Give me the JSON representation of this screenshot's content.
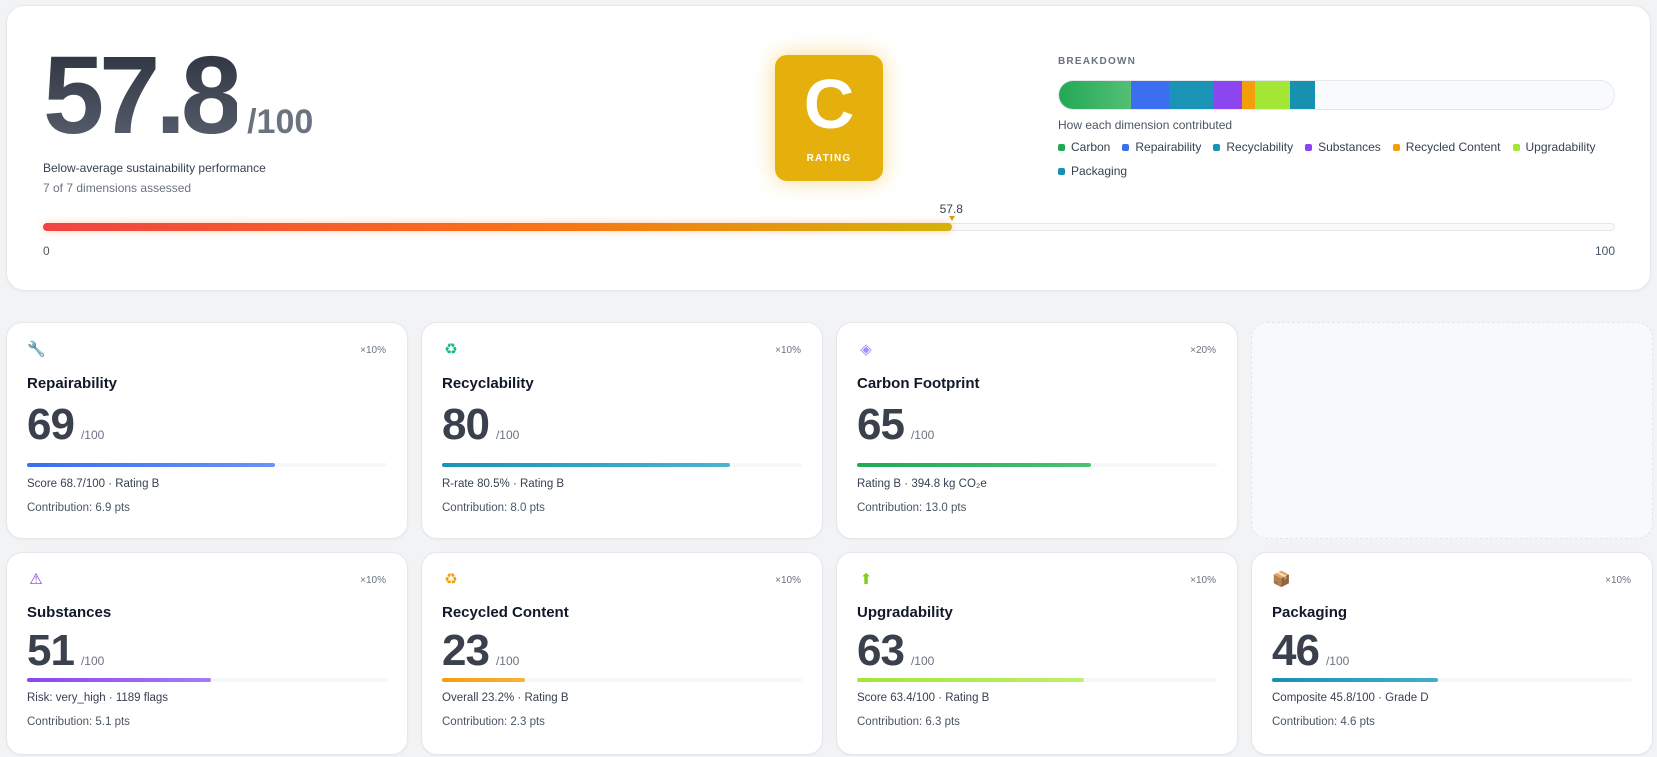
{
  "summary": {
    "score": "57.8",
    "max": "/100",
    "description": "Below-average sustainability performance",
    "dimensions_assessed": "7 of 7 dimensions assessed",
    "grade": "C",
    "grade_caption": "RATING",
    "grade_color": "#e6b00c",
    "score_value": 57.8,
    "score_pointer_label": "57.8",
    "scale_min": "0",
    "scale_max": "100"
  },
  "breakdown": {
    "title": "BREAKDOWN",
    "subtitle": "How each dimension contributed",
    "segments": [
      {
        "name": "Carbon",
        "points": 13.0,
        "color": "#22a954"
      },
      {
        "name": "Repairability",
        "points": 6.9,
        "color": "#3b6ff0"
      },
      {
        "name": "Recyclability",
        "points": 8.0,
        "color": "#1a94b6"
      },
      {
        "name": "Substances",
        "points": 5.1,
        "color": "#8b46f0"
      },
      {
        "name": "Recycled Content",
        "points": 2.3,
        "color": "#f59e0b"
      },
      {
        "name": "Upgradability",
        "points": 6.3,
        "color": "#a3e635"
      },
      {
        "name": "Packaging",
        "points": 4.6,
        "color": "#1791b0"
      }
    ]
  },
  "cards": [
    {
      "id": "repairability",
      "icon": "wrench-icon",
      "icon_glyph": "🔧",
      "icon_color": "#9ca3af",
      "weight": "×10%",
      "title": "Repairability",
      "score": "69",
      "max": "/100",
      "value": 69,
      "bar_color": "#3b6ff0",
      "bar_color2": "#6b93f5",
      "detail": "Score 68.7/100 · Rating B",
      "contribution": "Contribution: 6.9 pts"
    },
    {
      "id": "recyclability",
      "icon": "recycle-icon",
      "icon_glyph": "♻",
      "icon_color": "#10b981",
      "weight": "×10%",
      "title": "Recyclability",
      "score": "80",
      "max": "/100",
      "value": 80,
      "bar_color": "#1a94b6",
      "bar_color2": "#4db3d1",
      "detail": "R-rate 80.5% · Rating B",
      "contribution": "Contribution: 8.0 pts"
    },
    {
      "id": "carbon",
      "icon": "cloud-icon",
      "icon_glyph": "◈",
      "icon_color": "#a78bfa",
      "weight": "×20%",
      "title": "Carbon Footprint",
      "score": "65",
      "max": "/100",
      "value": 65,
      "bar_color": "#22a954",
      "bar_color2": "#4cc173",
      "detail": "Rating B · 394.8 kg CO₂e",
      "contribution": "Contribution: 13.0 pts"
    },
    {
      "id": "substances",
      "icon": "warning-icon",
      "icon_glyph": "⚠",
      "icon_color": "#7c3aed",
      "weight": "×10%",
      "title": "Substances",
      "score": "51",
      "max": "/100",
      "value": 51,
      "bar_color": "#8b46f0",
      "bar_color2": "#a87af5",
      "detail": "Risk: very_high · 1189 flags",
      "contribution": "Contribution: 5.1 pts"
    },
    {
      "id": "recycled-content",
      "icon": "recycle-orange-icon",
      "icon_glyph": "♻",
      "icon_color": "#f59e0b",
      "weight": "×10%",
      "title": "Recycled Content",
      "score": "23",
      "max": "/100",
      "value": 23,
      "bar_color": "#f59e0b",
      "bar_color2": "#f7b23b",
      "detail": "Overall 23.2% · Rating B",
      "contribution": "Contribution: 2.3 pts"
    },
    {
      "id": "upgradability",
      "icon": "arrow-up-icon",
      "icon_glyph": "⬆",
      "icon_color": "#84cc16",
      "weight": "×10%",
      "title": "Upgradability",
      "score": "63",
      "max": "/100",
      "value": 63,
      "bar_color": "#a3e635",
      "bar_color2": "#bfef6a",
      "detail": "Score 63.4/100 · Rating B",
      "contribution": "Contribution: 6.3 pts"
    },
    {
      "id": "packaging",
      "icon": "package-icon",
      "icon_glyph": "📦",
      "icon_color": "#b45309",
      "weight": "×10%",
      "title": "Packaging",
      "score": "46",
      "max": "/100",
      "value": 46,
      "bar_color": "#1791b0",
      "bar_color2": "#43afc9",
      "detail": "Composite 45.8/100 · Grade D",
      "contribution": "Contribution: 4.6 pts"
    }
  ]
}
